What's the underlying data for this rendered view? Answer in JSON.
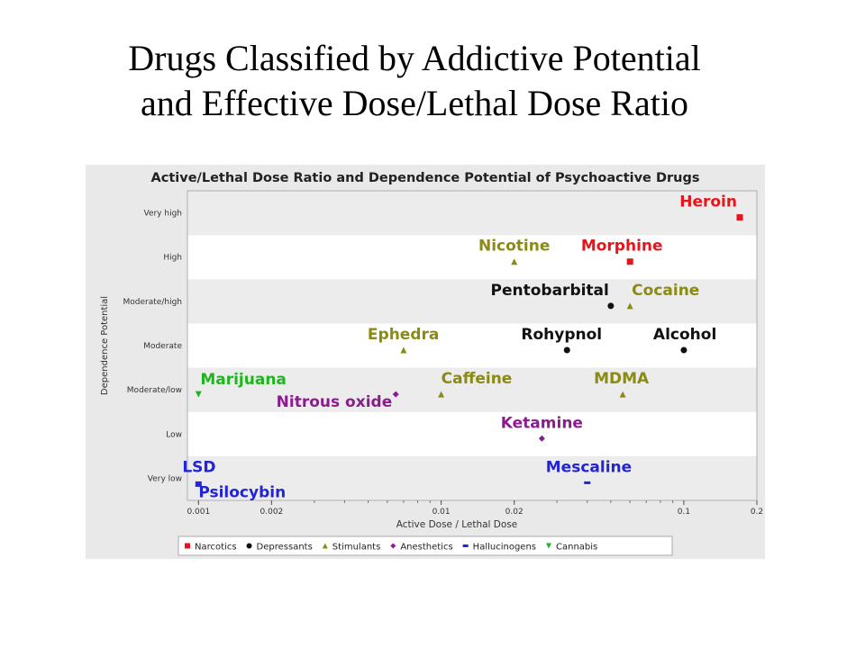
{
  "slide": {
    "title_line1": "Drugs Classified by Addictive Potential",
    "title_line2": "and Effective Dose/Lethal Dose Ratio"
  },
  "chart_data": {
    "type": "scatter",
    "title": "Active/Lethal Dose Ratio and Dependence Potential of Psychoactive Drugs",
    "xlabel": "Active Dose / Lethal Dose",
    "ylabel": "Dependence Potential",
    "x_scale": "log",
    "xlim": [
      0.0009,
      0.2
    ],
    "x_ticks": [
      {
        "value": 0.001,
        "label": "0.001"
      },
      {
        "value": 0.002,
        "label": "0.002"
      },
      {
        "value": 0.01,
        "label": "0.01"
      },
      {
        "value": 0.02,
        "label": "0.02"
      },
      {
        "value": 0.1,
        "label": "0.1"
      },
      {
        "value": 0.2,
        "label": "0.2"
      }
    ],
    "y_categories": [
      "Very low",
      "Low",
      "Moderate/low",
      "Moderate",
      "Moderate/high",
      "High",
      "Very high"
    ],
    "grid": false,
    "legend_position": "bottom",
    "series": [
      {
        "name": "Narcotics",
        "color": "#e8141c",
        "marker": "square",
        "points": [
          {
            "label": "Heroin",
            "x": 0.17,
            "y": "Very high"
          },
          {
            "label": "Morphine",
            "x": 0.06,
            "y": "High"
          }
        ]
      },
      {
        "name": "Depressants",
        "color": "#111111",
        "marker": "circle",
        "points": [
          {
            "label": "Pentobarbital",
            "x": 0.05,
            "y": "Moderate/high"
          },
          {
            "label": "Rohypnol",
            "x": 0.033,
            "y": "Moderate"
          },
          {
            "label": "Alcohol",
            "x": 0.1,
            "y": "Moderate"
          }
        ]
      },
      {
        "name": "Stimulants",
        "color": "#8a8a14",
        "marker": "triangle",
        "points": [
          {
            "label": "Nicotine",
            "x": 0.02,
            "y": "High"
          },
          {
            "label": "Cocaine",
            "x": 0.06,
            "y": "Moderate/high"
          },
          {
            "label": "Ephedra",
            "x": 0.007,
            "y": "Moderate"
          },
          {
            "label": "Caffeine",
            "x": 0.01,
            "y": "Moderate/low"
          },
          {
            "label": "MDMA",
            "x": 0.056,
            "y": "Moderate/low"
          }
        ]
      },
      {
        "name": "Anesthetics",
        "color": "#8b1c8e",
        "marker": "diamond",
        "points": [
          {
            "label": "Nitrous oxide",
            "x": 0.0065,
            "y": "Moderate/low"
          },
          {
            "label": "Ketamine",
            "x": 0.026,
            "y": "Low"
          }
        ]
      },
      {
        "name": "Hallucinogens",
        "color": "#2323d8",
        "marker": "dash",
        "points": [
          {
            "label": "LSD",
            "x": 0.001,
            "y": "Very low"
          },
          {
            "label": "Psilocybin",
            "x": 0.001,
            "y": "Very low"
          },
          {
            "label": "Mescaline",
            "x": 0.04,
            "y": "Very low"
          }
        ]
      },
      {
        "name": "Cannabis",
        "color": "#1fb51f",
        "marker": "triangle-down",
        "points": [
          {
            "label": "Marijuana",
            "x": 0.001,
            "y": "Moderate/low"
          }
        ]
      }
    ]
  }
}
